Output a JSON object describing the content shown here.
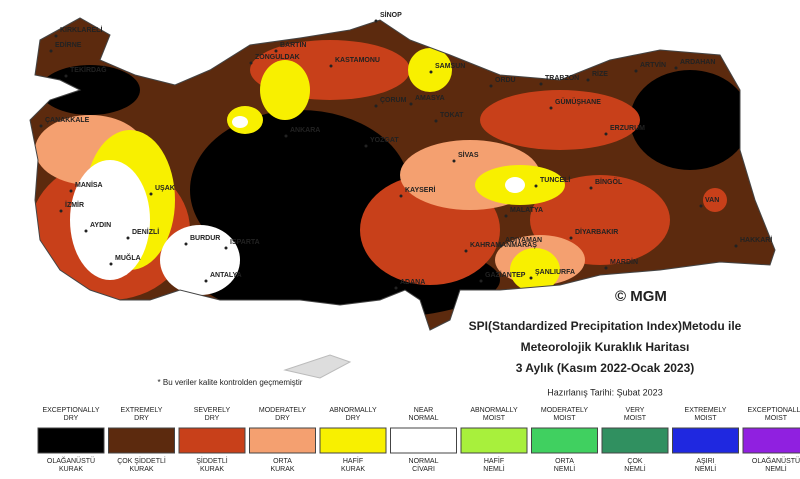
{
  "map": {
    "title_lines": [
      "SPI(Standardized Precipitation Index)Metodu ile",
      "Meteorolojik Kuraklık Haritası",
      "3 Aylık (Kasım 2022-Ocak 2023)"
    ],
    "date": "Hazırlanış Tarihi: Şubat 2023",
    "copyright": "© MGM",
    "note": "* Bu veriler kalite kontrolden geçmemiştir",
    "cities": [
      "KIRKLARELİ",
      "EDİRNE",
      "TEKİRDAĞ",
      "ÇANAKKALE",
      "SİNOP",
      "BARTIN",
      "ZONGULDAK",
      "KASTAMONU",
      "SAMSUN",
      "ORDU",
      "TRABZON",
      "RİZE",
      "ARTVİN",
      "ARDAHAN",
      "ÇORUM",
      "AMASYA",
      "TOKAT",
      "GÜMÜŞHANE",
      "ERZURUM",
      "YOZGAT",
      "SİVAS",
      "TUNCELİ",
      "BİNGÖL",
      "VAN",
      "KAYSERİ",
      "MALATYA",
      "DİYARBAKIR",
      "HAKKARİ",
      "MARDİN",
      "ŞANLIURFA",
      "ADIYAMAN",
      "GAZİANTEP",
      "KAHRAMANMARAŞ",
      "ADANA",
      "MANİSA",
      "İZMİR",
      "AYDIN",
      "DENİZLİ",
      "MUĞLA",
      "BURDUR",
      "ISPARTA",
      "ANTALYA",
      "UŞAK",
      "ANKARA"
    ],
    "legend": [
      {
        "top": [
          "EXCEPTIONALLY",
          "DRY"
        ],
        "bottom": [
          "OLAĞANÜSTÜ",
          "KURAK"
        ],
        "color": "#000000"
      },
      {
        "top": [
          "EXTREMELY",
          "DRY"
        ],
        "bottom": [
          "ÇOK ŞİDDETLİ",
          "KURAK"
        ],
        "color": "#5c2a0e"
      },
      {
        "top": [
          "SEVERELY",
          "DRY"
        ],
        "bottom": [
          "ŞİDDETLİ",
          "KURAK"
        ],
        "color": "#c8401a"
      },
      {
        "top": [
          "MODERATELY",
          "DRY"
        ],
        "bottom": [
          "ORTA",
          "KURAK"
        ],
        "color": "#f4a070"
      },
      {
        "top": [
          "ABNORMALLY",
          "DRY"
        ],
        "bottom": [
          "HAFİF",
          "KURAK"
        ],
        "color": "#f8f000"
      },
      {
        "top": [
          "NEAR",
          "NORMAL"
        ],
        "bottom": [
          "NORMAL",
          "CİVARI"
        ],
        "color": "#ffffff"
      },
      {
        "top": [
          "ABNORMALLY",
          "MOIST"
        ],
        "bottom": [
          "HAFİF",
          "NEMLİ"
        ],
        "color": "#a8f03c"
      },
      {
        "top": [
          "MODERATELY",
          "MOIST"
        ],
        "bottom": [
          "ORTA",
          "NEMLİ"
        ],
        "color": "#40d060"
      },
      {
        "top": [
          "VERY",
          "MOIST"
        ],
        "bottom": [
          "ÇOK",
          "NEMLİ"
        ],
        "color": "#309060"
      },
      {
        "top": [
          "EXTREMELY",
          "MOIST"
        ],
        "bottom": [
          "AŞIRI",
          "NEMLİ"
        ],
        "color": "#1f28e0"
      },
      {
        "top": [
          "EXCEPTIONALLY",
          "MOIST"
        ],
        "bottom": [
          "OLAĞANÜSTÜ",
          "NEMLİ"
        ],
        "color": "#9020e0"
      }
    ]
  }
}
